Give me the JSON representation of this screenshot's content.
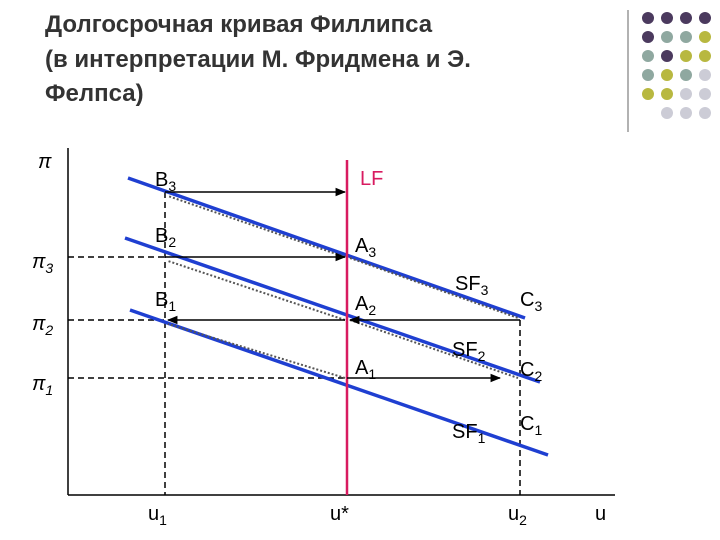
{
  "title": [
    "Долгосрочная кривая Филлипса",
    "(в интерпретации М. Фридмена и Э.",
    "Фелпса)"
  ],
  "y_axis": {
    "label": "π",
    "ticks": [
      {
        "main": "π",
        "sub": "3"
      },
      {
        "main": "π",
        "sub": "2"
      },
      {
        "main": "π",
        "sub": "1"
      }
    ]
  },
  "x_axis": {
    "label": "u",
    "ticks": [
      {
        "main": "u",
        "sub": "1"
      },
      {
        "main": "u*",
        "sub": ""
      },
      {
        "main": "u",
        "sub": "2"
      }
    ]
  },
  "curves": {
    "long_run": "LF",
    "short_run": [
      {
        "main": "SF",
        "sub": "3"
      },
      {
        "main": "SF",
        "sub": "2"
      },
      {
        "main": "SF",
        "sub": "1"
      }
    ]
  },
  "points": {
    "B": [
      {
        "main": "B",
        "sub": "3"
      },
      {
        "main": "B",
        "sub": "2"
      },
      {
        "main": "B",
        "sub": "1"
      }
    ],
    "A": [
      {
        "main": "A",
        "sub": "3"
      },
      {
        "main": "A",
        "sub": "2"
      },
      {
        "main": "A",
        "sub": "1"
      }
    ],
    "C": [
      {
        "main": "C",
        "sub": "3"
      },
      {
        "main": "C",
        "sub": "2"
      },
      {
        "main": "C",
        "sub": "1"
      }
    ]
  }
}
